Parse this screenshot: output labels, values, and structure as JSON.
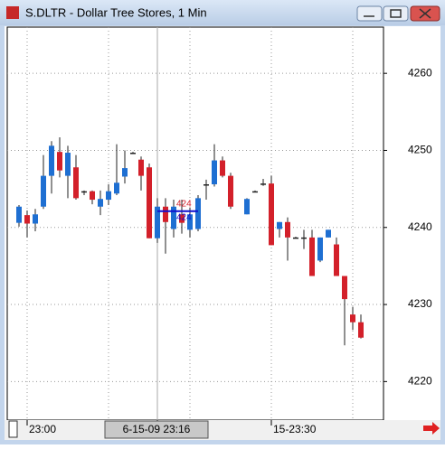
{
  "window_title": "S.DLTR - Dollar Tree Stores, 1 Min",
  "chart_data": {
    "type": "candlestick",
    "categories": [
      null,
      "23:00",
      null,
      null,
      null,
      null,
      null,
      null,
      null,
      null,
      null,
      null,
      null,
      null,
      null,
      null,
      null,
      "6-15-09  23:16",
      null,
      null,
      null,
      null,
      null,
      null,
      null,
      null,
      null,
      null,
      null,
      null,
      null,
      "15-23:30",
      null,
      null,
      null,
      null,
      null,
      null,
      null,
      null,
      null,
      null,
      null
    ],
    "open": [
      4240.6,
      4241.6,
      4240.5,
      4242.7,
      4246.7,
      4249.8,
      4246.7,
      4247.8,
      4244.7,
      4244.7,
      4242.7,
      4243.6,
      4244.4,
      4246.6,
      4249.7,
      4248.8,
      4247.8,
      4238.6,
      4242.7,
      4239.8,
      4241.7,
      4239.7,
      4239.8,
      4245.6,
      4245.6,
      4248.7,
      4246.7,
      null,
      4241.7,
      4244.7,
      4245.7,
      4245.7,
      4239.8,
      4240.7,
      4238.7,
      4238.7,
      4238.7,
      4235.7,
      4238.7,
      4237.8,
      4233.7,
      4228.7,
      4227.7
    ],
    "high": [
      4242.9,
      4242.2,
      4242.4,
      4249.4,
      4251.2,
      4251.7,
      4250.6,
      4249.4,
      4244.8,
      4244.8,
      4244.8,
      4245.6,
      4250.8,
      4250.0,
      4249.8,
      4249.2,
      4248.3,
      4243.8,
      4243.8,
      4243.6,
      4243.6,
      4242.6,
      4244.2,
      4246.2,
      4250.8,
      4249.2,
      4247.1,
      null,
      4243.8,
      4244.8,
      4246.3,
      4246.7,
      4240.7,
      4241.3,
      4238.8,
      4239.7,
      4239.7,
      4238.7,
      4239.7,
      4238.7,
      4233.7,
      4229.7,
      4228.7
    ],
    "low": [
      4240.1,
      4238.7,
      4239.5,
      4242.4,
      4244.4,
      4246.5,
      4243.8,
      4243.6,
      4244.2,
      4243.0,
      4241.6,
      4242.9,
      4244.2,
      4245.7,
      4249.6,
      4244.8,
      4238.6,
      4238.0,
      4236.6,
      4238.7,
      4239.2,
      4238.7,
      4239.5,
      4243.6,
      4245.3,
      4246.5,
      4242.4,
      null,
      4241.7,
      4244.6,
      4245.4,
      4237.7,
      4238.7,
      4235.7,
      4238.6,
      4237.2,
      4233.7,
      4235.5,
      4238.7,
      4233.7,
      4224.7,
      4226.7,
      4225.6
    ],
    "close": [
      4242.7,
      4240.5,
      4241.7,
      4246.7,
      4250.6,
      4247.4,
      4249.7,
      4243.8,
      4244.7,
      4243.6,
      4243.7,
      4244.7,
      4245.8,
      4247.7,
      4249.7,
      4246.7,
      4238.6,
      4242.7,
      4240.7,
      4242.7,
      4240.6,
      4241.7,
      4243.8,
      4245.6,
      4248.7,
      4246.7,
      4242.7,
      null,
      4243.7,
      4244.7,
      4245.7,
      4237.7,
      4240.7,
      4238.7,
      4238.7,
      4238.7,
      4233.7,
      4238.7,
      4239.7,
      4233.7,
      4230.7,
      4227.7,
      4225.7
    ],
    "up_color": "#1e6fd2",
    "down_color": "#d3202a",
    "ylim": [
      4215,
      4266
    ],
    "yticks": [
      4220,
      4230,
      4240,
      4250,
      4260
    ],
    "grid": true,
    "annotations": [
      "424",
      "424"
    ]
  }
}
